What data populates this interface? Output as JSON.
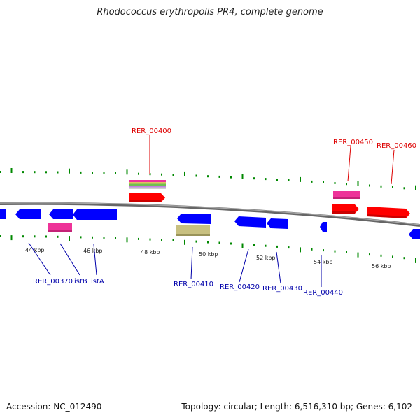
{
  "title": "Rhodococcus erythropolis PR4, complete genome",
  "accession": "Accession: NC_012490",
  "stats": "Topology: circular; Length: 6,516,310 bp; Genes: 6,102",
  "colors": {
    "forward_gene": "#ff0000",
    "reverse_gene": "#0000ff",
    "rna": "#ee3399",
    "misc_feature": "#c8c080",
    "backbone": "#777777",
    "ticks": "#008800",
    "forward_label": "#dd0000",
    "reverse_label": "#0000aa"
  },
  "scale_labels": [
    {
      "label": "44 kbp"
    },
    {
      "label": "46 kbp"
    },
    {
      "label": "48 kbp"
    },
    {
      "label": "50 kbp"
    },
    {
      "label": "52 kbp"
    },
    {
      "label": "54 kbp"
    },
    {
      "label": "56 kbp"
    }
  ],
  "gene_labels": [
    {
      "text": "RER_00400",
      "strand": "forward"
    },
    {
      "text": "RER_00450",
      "strand": "forward"
    },
    {
      "text": "RER_00460",
      "strand": "forward"
    },
    {
      "text": "RER_00370",
      "strand": "reverse"
    },
    {
      "text": "istB",
      "strand": "reverse"
    },
    {
      "text": "istA",
      "strand": "reverse"
    },
    {
      "text": "RER_00410",
      "strand": "reverse"
    },
    {
      "text": "RER_00420",
      "strand": "reverse"
    },
    {
      "text": "RER_00430",
      "strand": "reverse"
    },
    {
      "text": "RER_00440",
      "strand": "reverse"
    }
  ]
}
